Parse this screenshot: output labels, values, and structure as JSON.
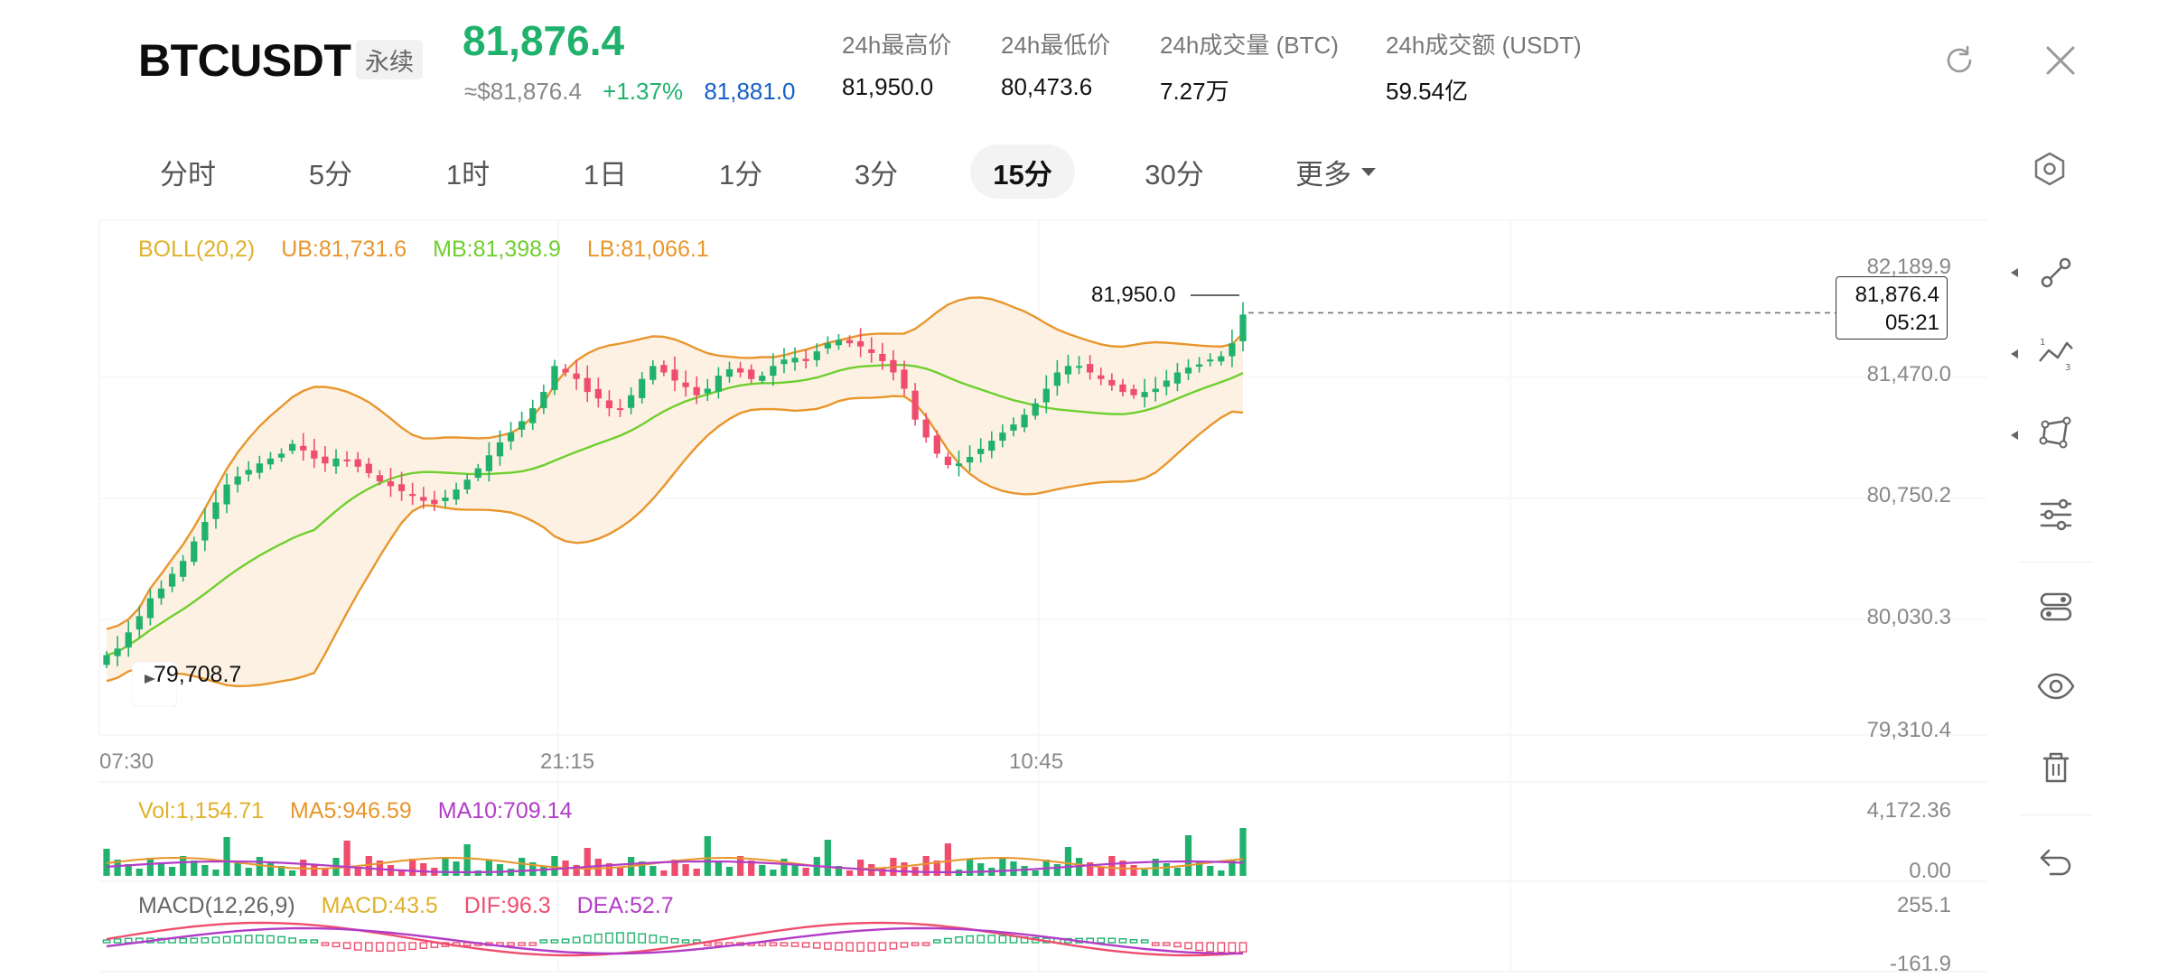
{
  "header": {
    "symbol": "BTCUSDT",
    "badge": "永续",
    "last_price": "81,876.4",
    "usd_price": "≈$81,876.4",
    "change_pct": "+1.37%",
    "mark_price": "81,881.0",
    "stats": [
      {
        "label": "24h最高价",
        "value": "81,950.0"
      },
      {
        "label": "24h最低价",
        "value": "80,473.6"
      },
      {
        "label": "24h成交量 (BTC)",
        "value": "7.27万"
      },
      {
        "label": "24h成交额 (USDT)",
        "value": "59.54亿"
      }
    ]
  },
  "tabs": [
    {
      "label": "分时",
      "active": false
    },
    {
      "label": "5分",
      "active": false
    },
    {
      "label": "1时",
      "active": false
    },
    {
      "label": "1日",
      "active": false
    },
    {
      "label": "1分",
      "active": false
    },
    {
      "label": "3分",
      "active": false
    },
    {
      "label": "15分",
      "active": true
    },
    {
      "label": "30分",
      "active": false
    },
    {
      "label": "更多",
      "active": false
    }
  ],
  "indicators": {
    "boll": {
      "name": "BOLL(20,2)",
      "ub": "UB:81,731.6",
      "mb": "MB:81,398.9",
      "lb": "LB:81,066.1"
    },
    "vol": {
      "vol": "Vol:1,154.71",
      "ma5": "MA5:946.59",
      "ma10": "MA10:709.14"
    },
    "macd": {
      "name": "MACD(12,26,9)",
      "macd": "MACD:43.5",
      "dif": "DIF:96.3",
      "dea": "DEA:52.7"
    }
  },
  "axes": {
    "price_ticks": [
      "82,189.9",
      "81,470.0",
      "80,750.2",
      "80,030.3",
      "79,310.4"
    ],
    "vol_ticks": [
      "4,172.36",
      "0.00"
    ],
    "macd_ticks": [
      "255.1",
      "-161.9"
    ],
    "time_ticks": [
      "07:30",
      "21:15",
      "10:45"
    ]
  },
  "chart": {
    "high_label": "81,950.0",
    "low_label": "79,708.7",
    "current_price": "81,876.4",
    "countdown": "05:21",
    "up_color": "#20b26c",
    "down_color": "#ef4d6d",
    "boll_ub_color": "#e8962c",
    "boll_mb_color": "#6fcf2e",
    "boll_lb_color": "#e8962c",
    "ma5_color": "#e8962c",
    "ma10_color": "#b23cc8"
  },
  "chart_data": {
    "type": "candlestick",
    "interval": "15分",
    "price_range": [
      79310.4,
      82189.9
    ],
    "closes": [
      79780,
      79820,
      79920,
      80020,
      80130,
      80190,
      80280,
      80360,
      80480,
      80600,
      80720,
      80830,
      80880,
      80920,
      80960,
      80990,
      81020,
      81080,
      81040,
      80990,
      80960,
      80990,
      80980,
      80940,
      80900,
      80850,
      80820,
      80790,
      80760,
      80730,
      80710,
      80750,
      80800,
      80860,
      80930,
      81010,
      81090,
      81150,
      81220,
      81300,
      81400,
      81560,
      81520,
      81480,
      81400,
      81360,
      81300,
      81290,
      81380,
      81480,
      81560,
      81520,
      81470,
      81430,
      81380,
      81420,
      81500,
      81540,
      81520,
      81480,
      81500,
      81560,
      81600,
      81610,
      81590,
      81650,
      81700,
      81720,
      81700,
      81680,
      81640,
      81590,
      81520,
      81420,
      81230,
      81120,
      81020,
      80950,
      80960,
      81000,
      81050,
      81100,
      81150,
      81200,
      81260,
      81330,
      81420,
      81520,
      81560,
      81560,
      81520,
      81480,
      81440,
      81400,
      81380,
      81400,
      81420,
      81470,
      81520,
      81550,
      81570,
      81600,
      81620,
      81700,
      81876.4
    ],
    "volume_range": [
      0,
      4172.36
    ],
    "macd_range": [
      -161.9,
      255.1
    ]
  }
}
